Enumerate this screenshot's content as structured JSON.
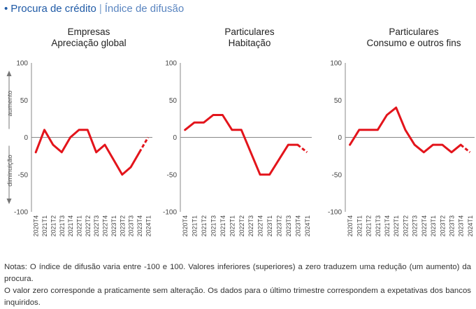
{
  "header": {
    "bullet": "•",
    "title": "Procura de crédito",
    "separator": "|",
    "subtitle": "Índice de difusão"
  },
  "colors": {
    "accent": "#1f5aa6",
    "series": "#e3141b",
    "axis": "#888888",
    "text": "#333333"
  },
  "yaxis_side_labels": {
    "up": "aumento",
    "down": "diminuição"
  },
  "chart_data": [
    {
      "type": "line",
      "title": "Empresas",
      "subtitle": "Apreciação global",
      "categories": [
        "2020T4",
        "2021T1",
        "2021T2",
        "2021T3",
        "2021T4",
        "2022T1",
        "2022T2",
        "2022T3",
        "2022T4",
        "2023T1",
        "2023T2",
        "2023T3",
        "2023T4",
        "2024T1"
      ],
      "values": [
        -20,
        10,
        -10,
        -20,
        0,
        10,
        10,
        -20,
        -10,
        -30,
        -50,
        -40,
        -20,
        0
      ],
      "expected_last": true,
      "yticks": [
        100,
        50,
        0,
        -50,
        -100
      ],
      "ylim": [
        -100,
        100
      ]
    },
    {
      "type": "line",
      "title": "Particulares",
      "subtitle": "Habitação",
      "categories": [
        "2020T4",
        "2021T1",
        "2021T2",
        "2021T3",
        "2021T4",
        "2022T1",
        "2022T2",
        "2022T3",
        "2022T4",
        "2023T1",
        "2023T2",
        "2023T3",
        "2023T4",
        "2024T1"
      ],
      "values": [
        10,
        20,
        20,
        30,
        30,
        10,
        10,
        -20,
        -50,
        -50,
        -30,
        -10,
        -10,
        -20
      ],
      "expected_last": true,
      "yticks": [
        100,
        50,
        0,
        -50,
        -100
      ],
      "ylim": [
        -100,
        100
      ]
    },
    {
      "type": "line",
      "title": "Particulares",
      "subtitle": "Consumo e outros fins",
      "categories": [
        "2020T4",
        "2021T1",
        "2021T2",
        "2021T3",
        "2021T4",
        "2022T1",
        "2022T2",
        "2022T3",
        "2022T4",
        "2023T1",
        "2023T2",
        "2023T3",
        "2023T4",
        "2024T1"
      ],
      "values": [
        -10,
        10,
        10,
        10,
        30,
        40,
        10,
        -10,
        -20,
        -10,
        -10,
        -20,
        -10,
        -20
      ],
      "expected_last": true,
      "yticks": [
        100,
        50,
        0,
        -50,
        -100
      ],
      "ylim": [
        -100,
        100
      ]
    }
  ],
  "notes": {
    "line1": "Notas: O índice de difusão varia entre -100 e 100. Valores inferiores (superiores) a zero traduzem uma redução (um aumento) da procura.",
    "line2": "O valor zero corresponde a praticamente sem alteração. Os dados para o último trimestre correspondem a expetativas dos bancos inquiridos."
  }
}
